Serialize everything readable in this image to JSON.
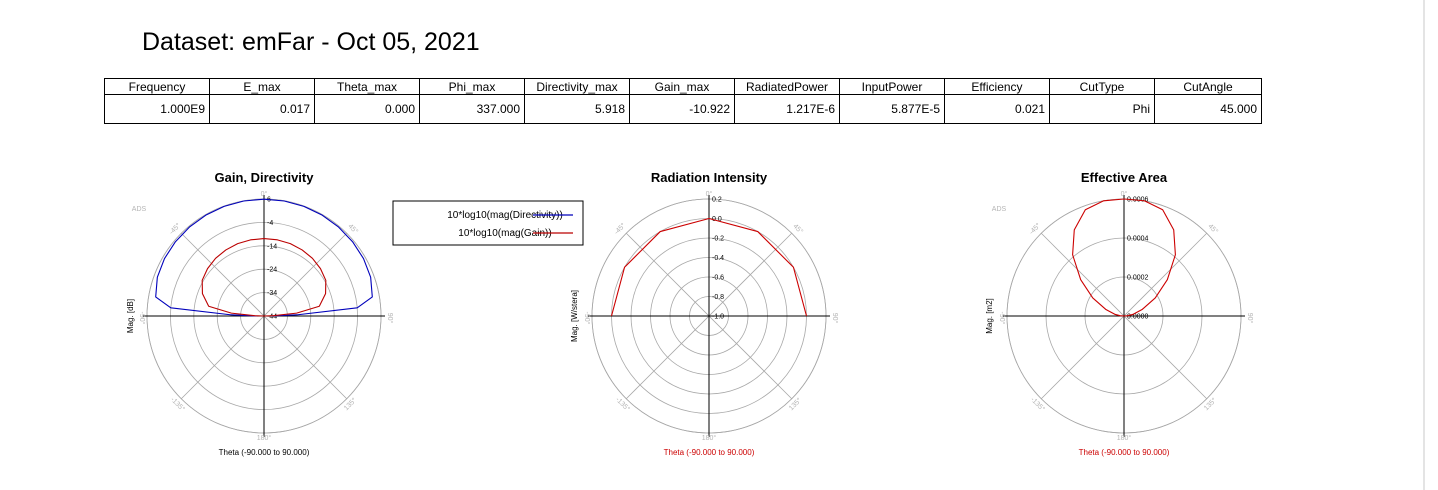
{
  "title": "Dataset: emFar - Oct 05, 2021",
  "table": {
    "headers": [
      "Frequency",
      "E_max",
      "Theta_max",
      "Phi_max",
      "Directivity_max",
      "Gain_max",
      "RadiatedPower",
      "InputPower",
      "Efficiency",
      "CutType",
      "CutAngle"
    ],
    "values": [
      "1.000E9",
      "0.017",
      "0.000",
      "337.000",
      "5.918",
      "-10.922",
      "1.217E-6",
      "5.877E-5",
      "0.021",
      "Phi",
      "45.000"
    ]
  },
  "chart_data": [
    {
      "type": "polar",
      "title": "Gain, Directivity",
      "ylabel": "Mag. [dB]",
      "xlabel": "Theta (-90.000 to 90.000)",
      "xlabel_color": "#000000",
      "watermark": "ADS",
      "radial_ticks": [
        6,
        -4,
        -14,
        -24,
        -34,
        -44
      ],
      "rlim": [
        -44,
        6
      ],
      "angle_labels": [
        "0°",
        "45°",
        "90°",
        "135°",
        "180°",
        "-135°",
        "-90°",
        "-45°"
      ],
      "legend": {
        "placement": "right",
        "entries": [
          "10*log10(mag(Directivity))",
          "10*log10(mag(Gain))"
        ]
      },
      "series": [
        {
          "name": "10*log10(mag(Directivity))",
          "color": "#0000bb",
          "theta": [
            -90,
            -88,
            -85,
            -80,
            -70,
            -60,
            -50,
            -40,
            -30,
            -20,
            -10,
            0,
            10,
            20,
            30,
            40,
            50,
            60,
            70,
            80,
            85,
            88,
            90
          ],
          "r": [
            -41,
            -30,
            -4,
            3,
            4.5,
            5.1,
            5.4,
            5.6,
            5.75,
            5.85,
            5.9,
            5.92,
            5.9,
            5.85,
            5.75,
            5.6,
            5.4,
            5.1,
            4.5,
            3,
            -4,
            -30,
            -41
          ]
        },
        {
          "name": "10*log10(mag(Gain))",
          "color": "#bb0000",
          "theta": [
            -90,
            -88,
            -85,
            -80,
            -70,
            -60,
            -50,
            -40,
            -30,
            -20,
            -10,
            0,
            10,
            20,
            30,
            40,
            50,
            60,
            70,
            80,
            85,
            88,
            90
          ],
          "r": [
            -44,
            -40,
            -30,
            -20,
            -16,
            -13.5,
            -12.5,
            -11.8,
            -11.4,
            -11.1,
            -10.95,
            -10.92,
            -10.95,
            -11.1,
            -11.4,
            -11.8,
            -12.5,
            -13.5,
            -16,
            -20,
            -30,
            -40,
            -44
          ]
        }
      ]
    },
    {
      "type": "polar",
      "title": "Radiation Intensity",
      "ylabel": "Mag. [W/stera]",
      "xlabel": "Theta (-90.000 to 90.000)",
      "xlabel_color": "#cc0000",
      "radial_ticks": [
        0.2,
        0.0,
        -0.2,
        -0.4,
        -0.6,
        -0.8,
        -1.0
      ],
      "rlim": [
        -1.0,
        0.2
      ],
      "angle_labels": [
        "0°",
        "45°",
        "90°",
        "135°",
        "180°",
        "-135°",
        "-90°",
        "-45°"
      ],
      "series": [
        {
          "name": "",
          "color": "#cc0000",
          "theta": [
            -90,
            -60,
            -30,
            0,
            30,
            60,
            90
          ],
          "r": [
            0.0,
            0.0,
            0.0,
            0.0,
            0.0,
            0.0,
            0.0
          ]
        }
      ]
    },
    {
      "type": "polar",
      "title": "Effective Area",
      "ylabel": "Mag. [m2]",
      "xlabel": "Theta (-90.000 to 90.000)",
      "xlabel_color": "#cc0000",
      "watermark": "ADS",
      "radial_ticks": [
        0.0006,
        0.0004,
        0.0002,
        0.0
      ],
      "rlim": [
        0,
        0.0006
      ],
      "angle_labels": [
        "0°",
        "45°",
        "90°",
        "135°",
        "180°",
        "-135°",
        "-90°",
        "-45°"
      ],
      "series": [
        {
          "name": "",
          "color": "#cc0000",
          "theta": [
            -90,
            -85,
            -80,
            -70,
            -60,
            -50,
            -40,
            -30,
            -20,
            -10,
            0,
            10,
            20,
            30,
            40,
            50,
            60,
            70,
            80,
            85,
            90
          ],
          "r": [
            0.0,
            2e-05,
            4.55e-05,
            0.0001,
            0.000185,
            0.00029,
            0.00041,
            0.00051,
            0.00058,
            0.000615,
            0.000625,
            0.000615,
            0.00058,
            0.00051,
            0.00041,
            0.00029,
            0.000185,
            0.0001,
            4.55e-05,
            2e-05,
            0.0
          ]
        }
      ]
    }
  ]
}
